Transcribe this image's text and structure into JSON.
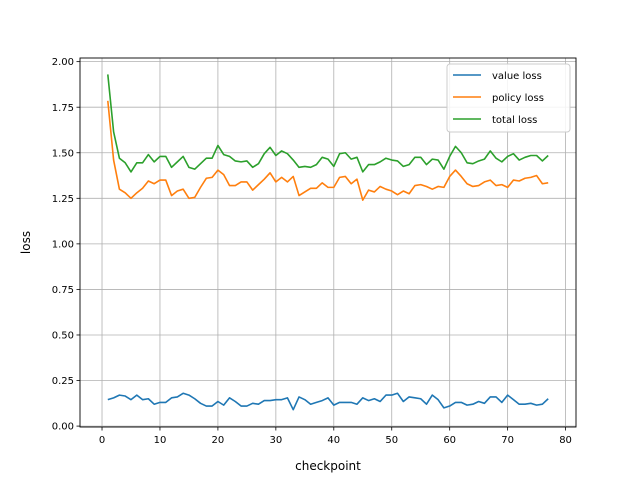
{
  "chart_data": {
    "type": "line",
    "title": "",
    "xlabel": "checkpoint",
    "ylabel": "loss",
    "xlim": [
      -3.8,
      81.8
    ],
    "ylim": [
      -0.005,
      2.02
    ],
    "xticks": [
      0,
      10,
      20,
      30,
      40,
      50,
      60,
      70,
      80
    ],
    "xtick_labels": [
      "0",
      "10",
      "20",
      "30",
      "40",
      "50",
      "60",
      "70",
      "80"
    ],
    "yticks": [
      0.0,
      0.25,
      0.5,
      0.75,
      1.0,
      1.25,
      1.5,
      1.75,
      2.0
    ],
    "ytick_labels": [
      "0.00",
      "0.25",
      "0.50",
      "0.75",
      "1.00",
      "1.25",
      "1.50",
      "1.75",
      "2.00"
    ],
    "grid": true,
    "legend_position": "top-right",
    "x": [
      1,
      2,
      3,
      4,
      5,
      6,
      7,
      8,
      9,
      10,
      11,
      12,
      13,
      14,
      15,
      16,
      17,
      18,
      19,
      20,
      21,
      22,
      23,
      24,
      25,
      26,
      27,
      28,
      29,
      30,
      31,
      32,
      33,
      34,
      35,
      36,
      37,
      38,
      39,
      40,
      41,
      42,
      43,
      44,
      45,
      46,
      47,
      48,
      49,
      50,
      51,
      52,
      53,
      54,
      55,
      56,
      57,
      58,
      59,
      60,
      61,
      62,
      63,
      64,
      65,
      66,
      67,
      68,
      69,
      70,
      71,
      72,
      73,
      74,
      75,
      76,
      77
    ],
    "series": [
      {
        "name": "value loss",
        "color": "#1f77b4",
        "values": [
          0.145,
          0.155,
          0.17,
          0.165,
          0.145,
          0.17,
          0.145,
          0.15,
          0.12,
          0.13,
          0.13,
          0.155,
          0.16,
          0.18,
          0.17,
          0.15,
          0.125,
          0.11,
          0.11,
          0.135,
          0.115,
          0.155,
          0.135,
          0.11,
          0.11,
          0.125,
          0.12,
          0.14,
          0.14,
          0.145,
          0.145,
          0.155,
          0.09,
          0.16,
          0.145,
          0.12,
          0.13,
          0.14,
          0.155,
          0.115,
          0.13,
          0.13,
          0.13,
          0.12,
          0.155,
          0.14,
          0.15,
          0.135,
          0.17,
          0.17,
          0.18,
          0.135,
          0.16,
          0.155,
          0.15,
          0.12,
          0.17,
          0.145,
          0.1,
          0.11,
          0.13,
          0.13,
          0.115,
          0.12,
          0.135,
          0.125,
          0.16,
          0.16,
          0.13,
          0.17,
          0.145,
          0.12,
          0.12,
          0.125,
          0.115,
          0.12,
          0.15
        ]
      },
      {
        "name": "policy loss",
        "color": "#ff7f0e",
        "values": [
          1.785,
          1.46,
          1.3,
          1.28,
          1.25,
          1.28,
          1.305,
          1.345,
          1.33,
          1.35,
          1.35,
          1.265,
          1.29,
          1.3,
          1.25,
          1.255,
          1.31,
          1.36,
          1.365,
          1.405,
          1.38,
          1.32,
          1.32,
          1.34,
          1.34,
          1.295,
          1.325,
          1.355,
          1.39,
          1.34,
          1.365,
          1.34,
          1.37,
          1.265,
          1.285,
          1.305,
          1.305,
          1.335,
          1.31,
          1.31,
          1.365,
          1.37,
          1.33,
          1.355,
          1.24,
          1.295,
          1.285,
          1.315,
          1.3,
          1.29,
          1.27,
          1.29,
          1.275,
          1.32,
          1.325,
          1.315,
          1.3,
          1.315,
          1.31,
          1.37,
          1.405,
          1.37,
          1.33,
          1.315,
          1.32,
          1.34,
          1.35,
          1.32,
          1.325,
          1.31,
          1.35,
          1.345,
          1.36,
          1.365,
          1.375,
          1.33,
          1.335
        ]
      },
      {
        "name": "total loss",
        "color": "#2ca02c",
        "values": [
          1.93,
          1.615,
          1.47,
          1.445,
          1.395,
          1.445,
          1.445,
          1.49,
          1.45,
          1.48,
          1.48,
          1.42,
          1.45,
          1.48,
          1.42,
          1.41,
          1.44,
          1.47,
          1.47,
          1.54,
          1.49,
          1.48,
          1.455,
          1.45,
          1.455,
          1.42,
          1.44,
          1.495,
          1.53,
          1.485,
          1.51,
          1.495,
          1.46,
          1.42,
          1.425,
          1.42,
          1.435,
          1.475,
          1.465,
          1.425,
          1.495,
          1.5,
          1.465,
          1.475,
          1.395,
          1.435,
          1.435,
          1.45,
          1.47,
          1.46,
          1.455,
          1.425,
          1.435,
          1.475,
          1.475,
          1.435,
          1.465,
          1.46,
          1.41,
          1.48,
          1.535,
          1.5,
          1.445,
          1.44,
          1.455,
          1.465,
          1.51,
          1.47,
          1.45,
          1.48,
          1.495,
          1.46,
          1.475,
          1.485,
          1.485,
          1.455,
          1.485
        ]
      }
    ]
  }
}
